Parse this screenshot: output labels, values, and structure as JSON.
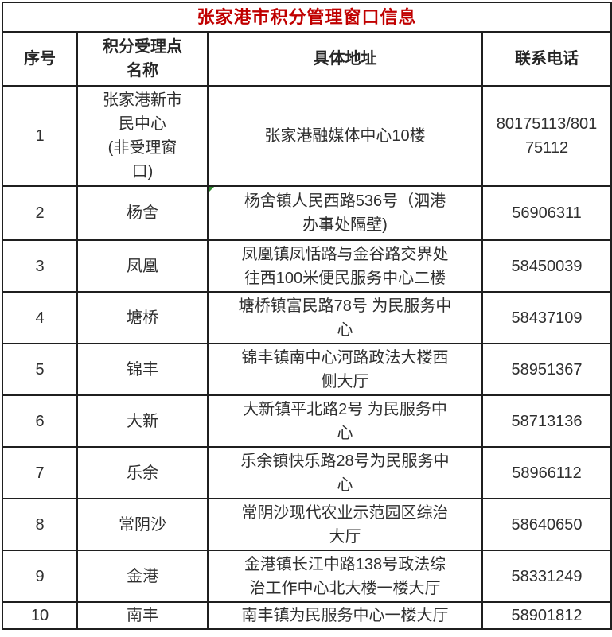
{
  "title": {
    "text": "张家港市积分管理窗口信息"
  },
  "colors": {
    "title_red": "#c00000",
    "border": "#1f1f1f",
    "text": "#2f2f2f",
    "corner_marker_green": "#2e8b2e",
    "background": "#ffffff"
  },
  "table": {
    "headers": [
      "序号",
      "积分受理点\n名称",
      "具体地址",
      "联系电话"
    ],
    "rows": [
      {
        "no": "1",
        "name": "张家港新市\n民中心\n(非受理窗\n口)",
        "address": "张家港融媒体中心10楼",
        "phone": "80175113/801\n75112"
      },
      {
        "no": "2",
        "name": "杨舍",
        "address": "杨舍镇人民西路536号（泗港\n办事处隔壁)",
        "phone": "56906311"
      },
      {
        "no": "3",
        "name": "凤凰",
        "address": "凤凰镇凤恬路与金谷路交界处\n往西100米便民服务中心二楼",
        "phone": "58450039"
      },
      {
        "no": "4",
        "name": "塘桥",
        "address": "塘桥镇富民路78号 为民服务中\n心",
        "phone": "58437109"
      },
      {
        "no": "5",
        "name": "锦丰",
        "address": "锦丰镇南中心河路政法大楼西\n侧大厅",
        "phone": "58951367"
      },
      {
        "no": "6",
        "name": "大新",
        "address": "大新镇平北路2号 为民服务中\n心",
        "phone": "58713136"
      },
      {
        "no": "7",
        "name": "乐余",
        "address": "乐余镇快乐路28号为民服务中\n心",
        "phone": "58966112"
      },
      {
        "no": "8",
        "name": "常阴沙",
        "address": "常阴沙现代农业示范园区综治\n大厅",
        "phone": "58640650"
      },
      {
        "no": "9",
        "name": "金港",
        "address": "金港镇长江中路138号政法综\n治工作中心北大楼一楼大厅",
        "phone": "58331249"
      },
      {
        "no": "10",
        "name": "南丰",
        "address": "南丰镇为民服务中心一楼大厅",
        "phone": "58901812"
      }
    ]
  }
}
